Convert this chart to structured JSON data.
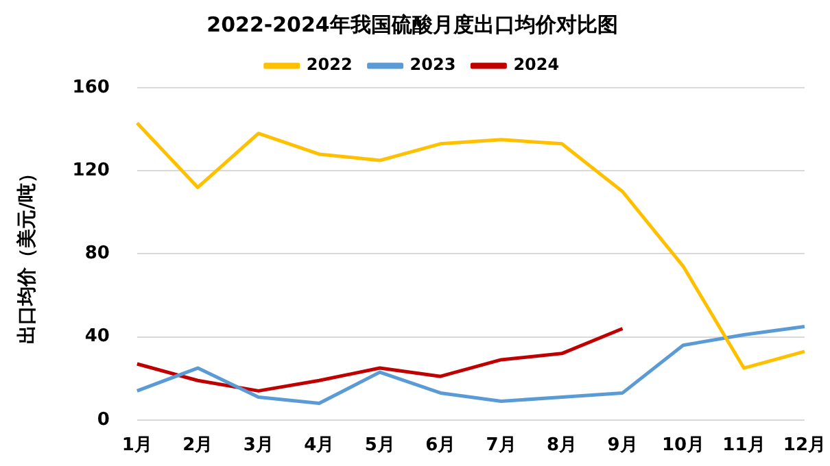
{
  "chart_data": {
    "type": "line",
    "title": "2022-2024年我国硫酸月度出口均价对比图",
    "ylabel": "出口均价（美元/吨）",
    "categories": [
      "1月",
      "2月",
      "3月",
      "4月",
      "5月",
      "6月",
      "7月",
      "8月",
      "9月",
      "10月",
      "11月",
      "12月"
    ],
    "series": [
      {
        "name": "2022",
        "color": "#ffc000",
        "values": [
          143,
          112,
          138,
          128,
          125,
          133,
          135,
          133,
          110,
          74,
          25,
          33
        ]
      },
      {
        "name": "2023",
        "color": "#5b9bd5",
        "values": [
          14,
          25,
          11,
          8,
          23,
          13,
          9,
          11,
          13,
          36,
          41,
          45
        ]
      },
      {
        "name": "2024",
        "color": "#c00000",
        "values": [
          27,
          19,
          14,
          19,
          25,
          21,
          29,
          32,
          44,
          null,
          null,
          null
        ]
      }
    ],
    "ylim": [
      0,
      160
    ],
    "yticks": [
      0,
      40,
      80,
      120,
      160
    ],
    "grid": "y",
    "legend": "top",
    "marker": "none"
  }
}
